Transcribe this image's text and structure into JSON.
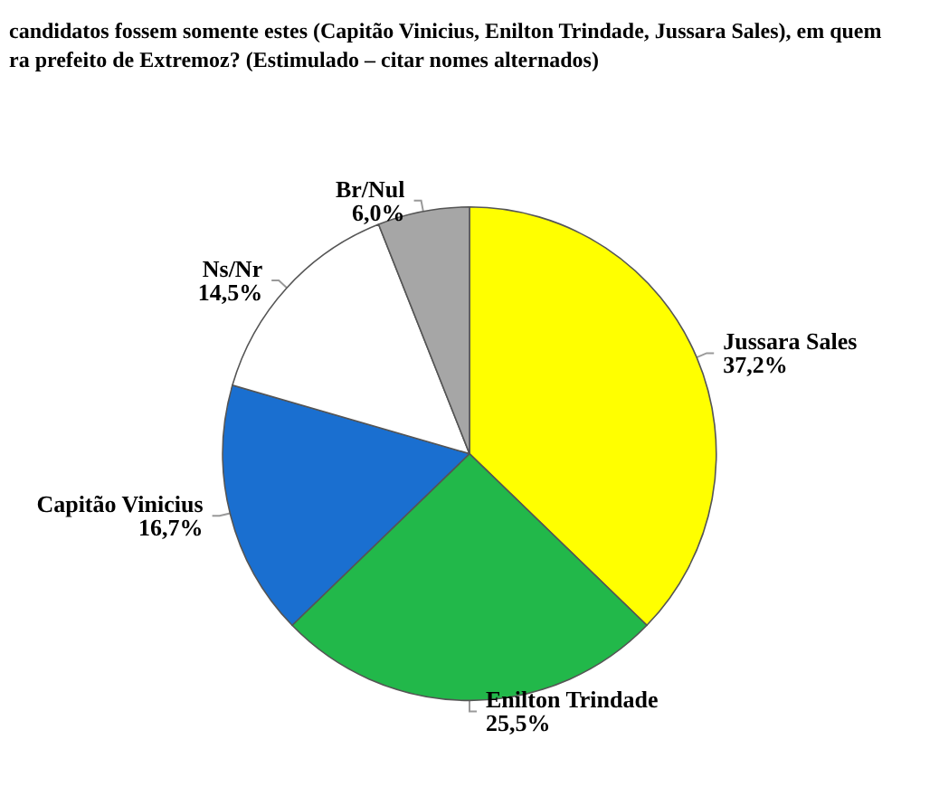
{
  "chart_data": {
    "type": "pie",
    "title": "candidatos fossem somente estes (Capitão Vinicius, Enilton Trindade, Jussara Sales), em quem\nra prefeito de Extremoz? (Estimulado – citar nomes alternados)",
    "categories": [
      "Jussara Sales",
      "Enilton Trindade",
      "Capitão Vinicius",
      "Ns/Nr",
      "Br/Nul"
    ],
    "values": [
      37.2,
      25.5,
      16.7,
      14.5,
      6.0
    ],
    "value_labels": [
      "37,2%",
      "25,5%",
      "16,7%",
      "14,5%",
      "6,0%"
    ],
    "colors": [
      "#ffff00",
      "#22b84a",
      "#1a6fd0",
      "#ffffff",
      "#a6a6a6"
    ],
    "legend": false
  }
}
